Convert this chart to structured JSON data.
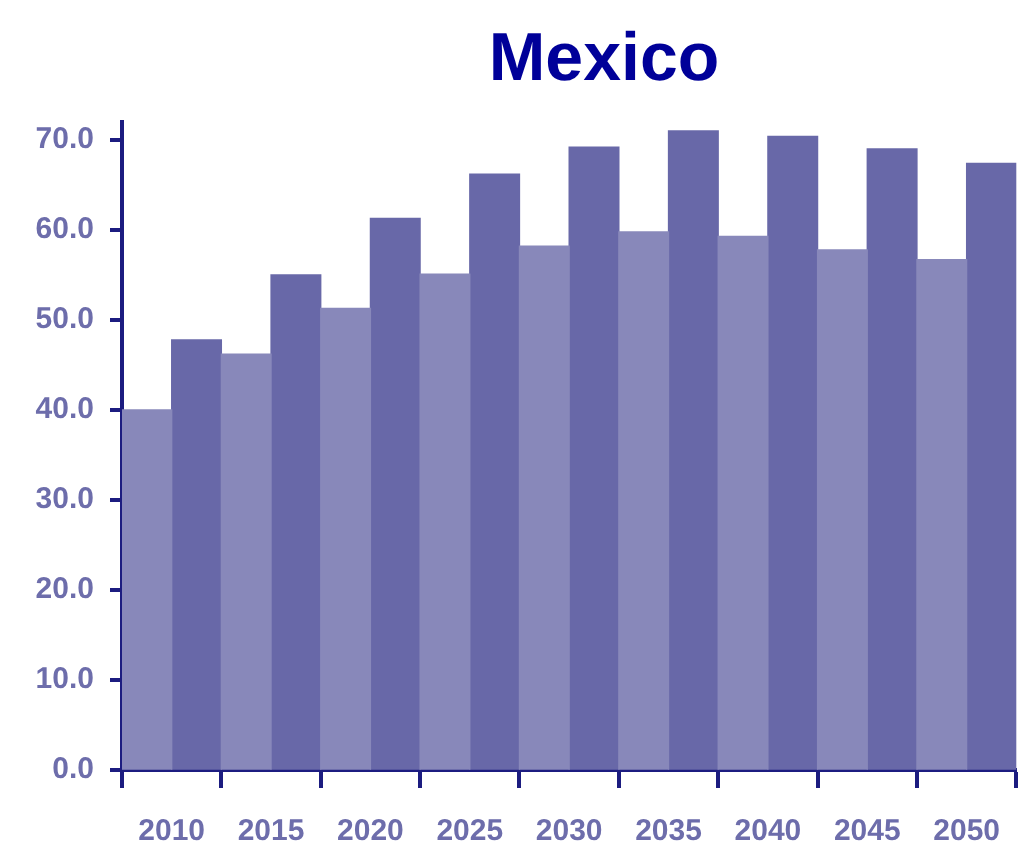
{
  "chart_data": {
    "type": "bar",
    "title": "Mexico",
    "categories": [
      "2010",
      "2015",
      "2020",
      "2025",
      "2030",
      "2035",
      "2040",
      "2045",
      "2050"
    ],
    "series": [
      {
        "color": "#8888ba",
        "values": [
          40.0,
          46.2,
          51.3,
          55.1,
          58.2,
          59.8,
          59.3,
          57.8,
          56.7
        ]
      },
      {
        "color": "#6868a8",
        "values": [
          47.8,
          55.0,
          61.3,
          66.2,
          69.2,
          71.0,
          70.4,
          69.0,
          67.4
        ]
      }
    ],
    "ylim": [
      0,
      72
    ],
    "yticks": [
      {
        "value": 0,
        "label": "0.0"
      },
      {
        "value": 10,
        "label": "10.0"
      },
      {
        "value": 20,
        "label": "20.0"
      },
      {
        "value": 30,
        "label": "30.0"
      },
      {
        "value": 40,
        "label": "40.0"
      },
      {
        "value": 50,
        "label": "50.0"
      },
      {
        "value": 60,
        "label": "60.0"
      },
      {
        "value": 70,
        "label": "70.0"
      }
    ],
    "grid": false,
    "legend": false
  }
}
